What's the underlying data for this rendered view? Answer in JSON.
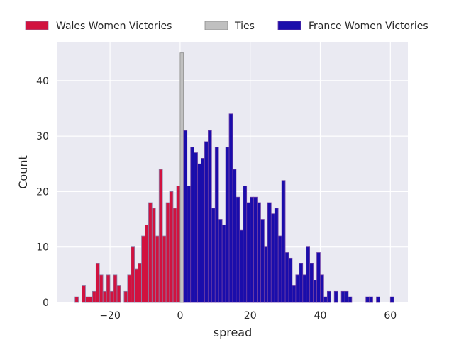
{
  "chart_data": {
    "type": "bar",
    "xlabel": "spread",
    "ylabel": "Count",
    "xlim": [
      -35,
      65
    ],
    "ylim": [
      0,
      47
    ],
    "x_ticks": [
      -20,
      0,
      20,
      40,
      60
    ],
    "x_tick_labels": [
      "−20",
      "0",
      "20",
      "40",
      "60"
    ],
    "y_ticks": [
      0,
      10,
      20,
      30,
      40
    ],
    "y_tick_labels": [
      "0",
      "10",
      "20",
      "30",
      "40"
    ],
    "grid": true,
    "legend_placement": "top",
    "series": [
      {
        "name": "Wales Women Victories",
        "color": "#d1123f",
        "edge": "#8a7ca6",
        "x": [
          -30,
          -28,
          -27,
          -26,
          -25,
          -24,
          -23,
          -22,
          -21,
          -20,
          -19,
          -18,
          -16,
          -15,
          -14,
          -13,
          -12,
          -11,
          -10,
          -9,
          -8,
          -7,
          -6,
          -5,
          -4,
          -3,
          -2,
          -1
        ],
        "values": [
          1,
          3,
          1,
          1,
          2,
          7,
          5,
          2,
          5,
          2,
          5,
          3,
          2,
          5,
          10,
          6,
          7,
          12,
          14,
          18,
          17,
          12,
          24,
          12,
          18,
          20,
          17,
          21
        ]
      },
      {
        "name": "Ties",
        "color": "#c0c0c0",
        "edge": "#8a8a8a",
        "x": [
          0
        ],
        "values": [
          45
        ]
      },
      {
        "name": "France Women Victories",
        "color": "#1a0dab",
        "edge": "#6a3da6",
        "x": [
          1,
          2,
          3,
          4,
          5,
          6,
          7,
          8,
          9,
          10,
          11,
          12,
          13,
          14,
          15,
          16,
          17,
          18,
          19,
          20,
          21,
          22,
          23,
          24,
          25,
          26,
          27,
          28,
          29,
          30,
          31,
          32,
          33,
          34,
          35,
          36,
          37,
          38,
          39,
          40,
          41,
          42,
          44,
          46,
          47,
          48,
          53,
          54,
          56,
          60
        ],
        "values": [
          31,
          21,
          28,
          27,
          25,
          26,
          29,
          31,
          17,
          28,
          15,
          14,
          28,
          34,
          24,
          19,
          13,
          21,
          18,
          19,
          19,
          18,
          15,
          10,
          18,
          16,
          17,
          12,
          22,
          9,
          8,
          3,
          5,
          7,
          5,
          10,
          7,
          4,
          9,
          5,
          1,
          2,
          2,
          2,
          2,
          1,
          1,
          1,
          1,
          1
        ]
      }
    ]
  }
}
